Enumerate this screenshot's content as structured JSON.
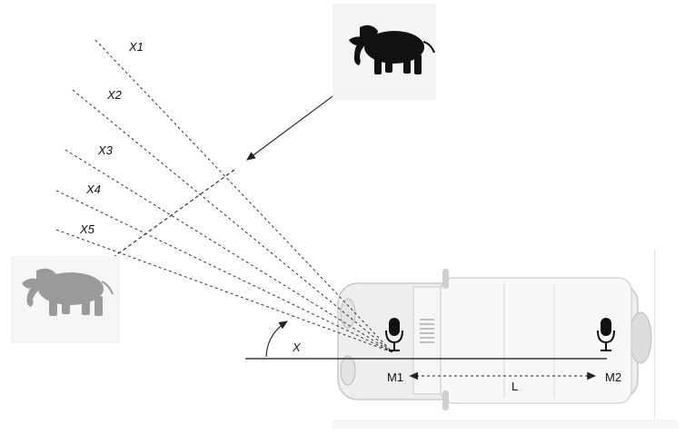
{
  "diagram": {
    "direction_labels": [
      "X1",
      "X2",
      "X3",
      "X4",
      "X5"
    ],
    "angle_label": "X",
    "mic_labels": [
      "M1",
      "M2"
    ],
    "spacing_label": "L",
    "icons": [
      "elephant-icon",
      "elephant-faded-icon",
      "vehicle-top-view",
      "microphone-icon"
    ],
    "colors": {
      "line": "#222222",
      "elephant": "#111111",
      "elephant_faded": "#9a9a9a",
      "vehicle": "#f2f2f2",
      "vehicle_outline": "#c8c8c8"
    }
  }
}
